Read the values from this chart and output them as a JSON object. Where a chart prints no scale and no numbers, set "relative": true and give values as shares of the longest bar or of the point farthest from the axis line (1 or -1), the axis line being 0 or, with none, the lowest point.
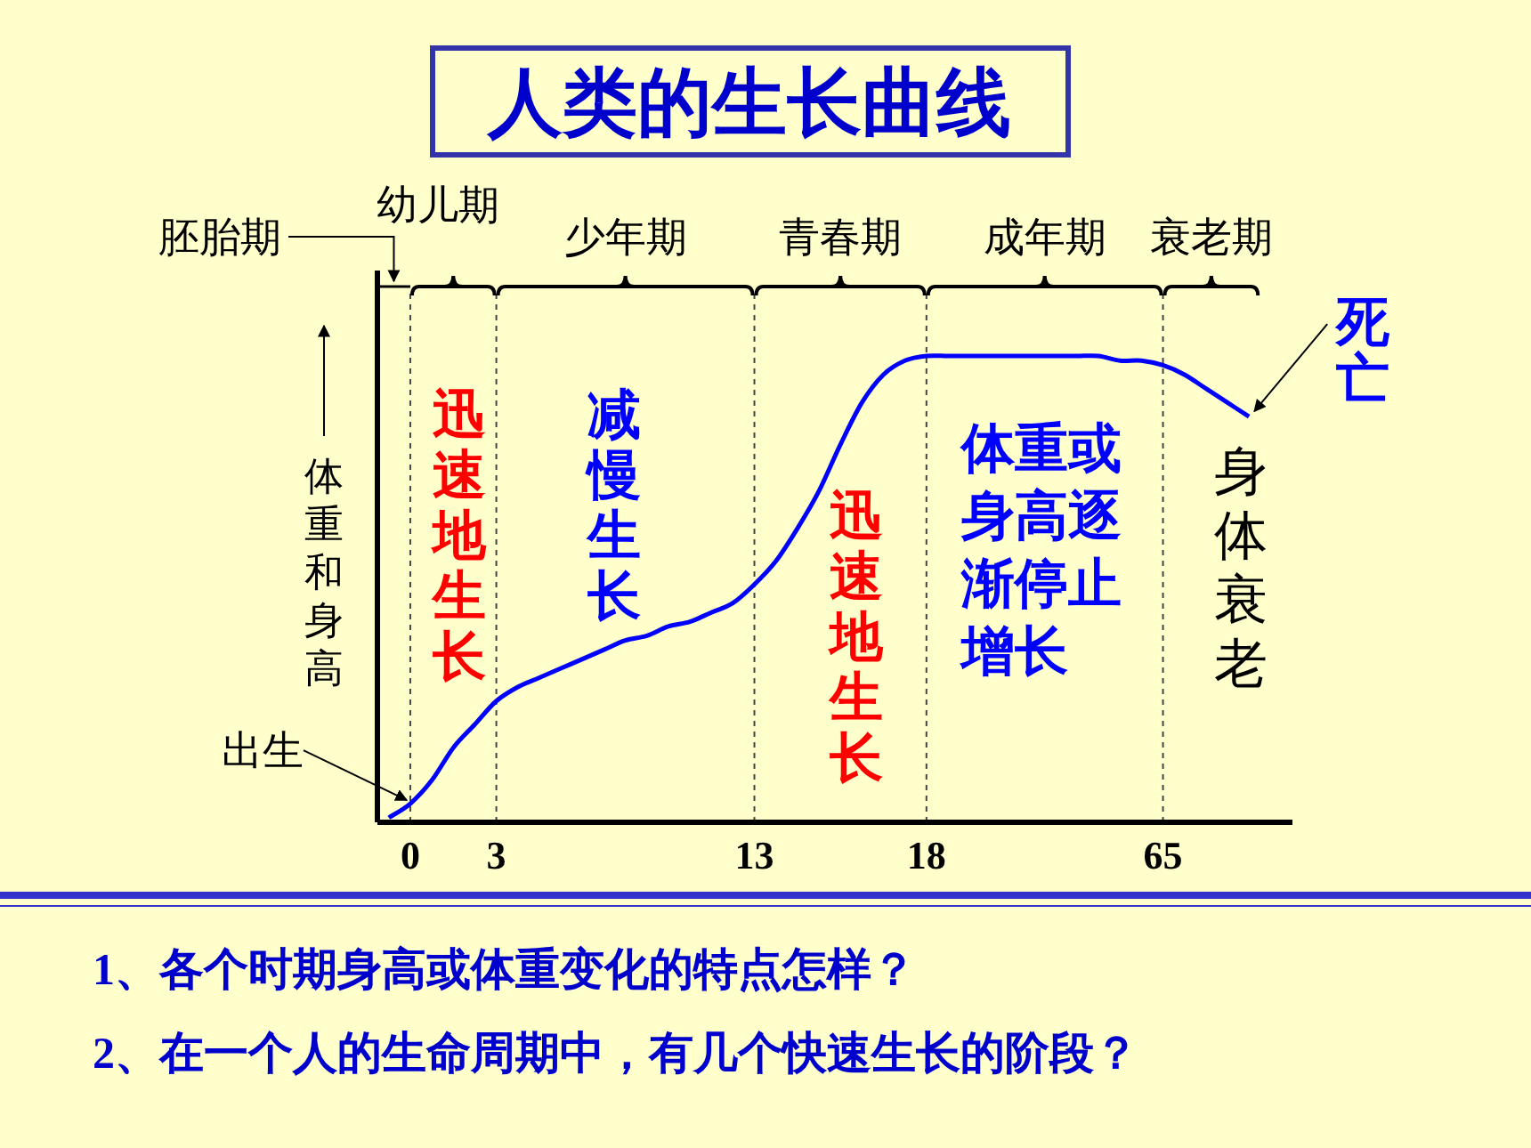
{
  "chart_data": {
    "type": "line",
    "title": "人类的生长曲线",
    "ylabel": "体重和身高",
    "relative": true,
    "grid": "x",
    "categories": [
      null,
      "0",
      null,
      null,
      null,
      "3",
      null,
      null,
      null,
      null,
      null,
      null,
      null,
      null,
      null,
      null,
      null,
      "13",
      null,
      null,
      null,
      null,
      null,
      null,
      null,
      "18",
      null,
      null,
      null,
      null,
      null,
      null,
      null,
      null,
      null,
      null,
      "65",
      null,
      null,
      null,
      null
    ],
    "series": [
      {
        "color": "#0000ff",
        "values": [
          0.01,
          0.04,
          0.09,
          0.16,
          0.21,
          0.26,
          0.29,
          0.31,
          0.33,
          0.35,
          0.37,
          0.39,
          0.4,
          0.42,
          0.43,
          0.45,
          0.47,
          0.51,
          0.56,
          0.63,
          0.71,
          0.81,
          0.9,
          0.96,
          0.99,
          1,
          1,
          1,
          1,
          1,
          1,
          1,
          1,
          1,
          0.99,
          0.99,
          0.98,
          0.96,
          0.93,
          0.9,
          0.87
        ]
      }
    ],
    "line_style": "solid",
    "marker": "none",
    "annotations": [
      "胚胎期",
      "幼儿期",
      "少年期",
      "青春期",
      "成年期",
      "衰老期",
      {
        "text": "出生",
        "x": "0",
        "y": 0.04
      },
      "死亡",
      "迅速地生长",
      "减慢生长",
      "迅速地生长",
      "体重或身高逐渐停止增长",
      "身体衰老",
      "1、各个时期身高或体重变化的特点怎样？",
      "2、在一个人的生命周期中，有几个快速生长的阶段？"
    ]
  }
}
